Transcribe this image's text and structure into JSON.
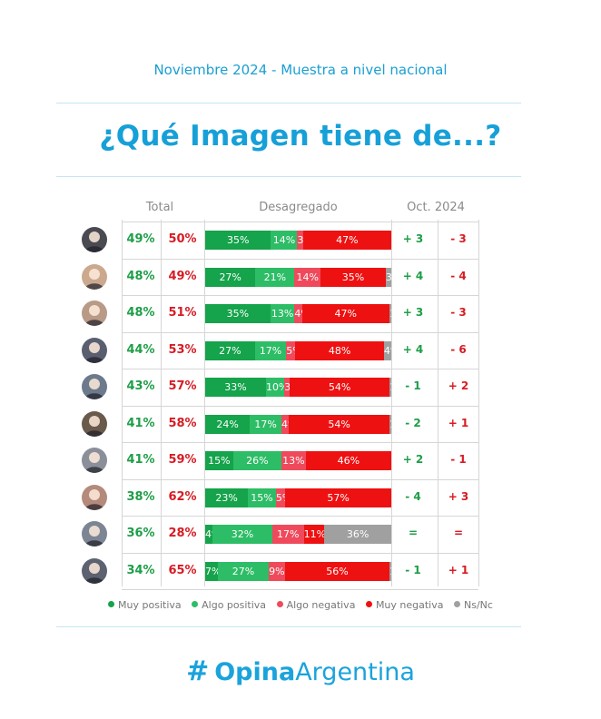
{
  "subtitle": "Noviembre 2024 - Muestra a nivel nacional",
  "title": "¿Qué Imagen tiene de...?",
  "headers": {
    "total": "Total",
    "desagregado": "Desagregado",
    "oct": "Oct. 2024"
  },
  "colors": {
    "muy_positiva": "#15a34b",
    "algo_positiva": "#2dbd66",
    "algo_negativa": "#ef4a5b",
    "muy_negativa": "#ee1111",
    "ns_nc": "#a0a0a0"
  },
  "chart_data": {
    "type": "bar",
    "stacked": true,
    "orientation": "horizontal",
    "series_names": [
      "Muy positiva",
      "Algo positiva",
      "Algo negativa",
      "Muy negativa",
      "Ns/Nc"
    ],
    "rows": [
      {
        "total_pos": "49%",
        "total_neg": "50%",
        "values": [
          35,
          14,
          3,
          47,
          0
        ],
        "labels": [
          "35%",
          "14%",
          "3%",
          "47%",
          "0%"
        ],
        "oct_pos": "+ 3",
        "oct_neg": "- 3"
      },
      {
        "total_pos": "48%",
        "total_neg": "49%",
        "values": [
          27,
          21,
          14,
          35,
          3
        ],
        "labels": [
          "27%",
          "21%",
          "14%",
          "35%",
          "3%"
        ],
        "oct_pos": "+ 4",
        "oct_neg": "- 4"
      },
      {
        "total_pos": "48%",
        "total_neg": "51%",
        "values": [
          35,
          13,
          4,
          47,
          1
        ],
        "labels": [
          "35%",
          "13%",
          "4%",
          "47%",
          "1%"
        ],
        "oct_pos": "+ 3",
        "oct_neg": "- 3"
      },
      {
        "total_pos": "44%",
        "total_neg": "53%",
        "values": [
          27,
          17,
          5,
          48,
          4
        ],
        "labels": [
          "27%",
          "17%",
          "5%",
          "48%",
          "4%"
        ],
        "oct_pos": "+ 4",
        "oct_neg": "- 6"
      },
      {
        "total_pos": "43%",
        "total_neg": "57%",
        "values": [
          33,
          10,
          3,
          54,
          1
        ],
        "labels": [
          "33%",
          "10%",
          "3%",
          "54%",
          "1%"
        ],
        "oct_pos": "- 1",
        "oct_neg": "+ 2"
      },
      {
        "total_pos": "41%",
        "total_neg": "58%",
        "values": [
          24,
          17,
          4,
          54,
          1
        ],
        "labels": [
          "24%",
          "17%",
          "4%",
          "54%",
          "1%"
        ],
        "oct_pos": "- 2",
        "oct_neg": "+ 1"
      },
      {
        "total_pos": "41%",
        "total_neg": "59%",
        "values": [
          15,
          26,
          13,
          46,
          0
        ],
        "labels": [
          "15%",
          "26%",
          "13%",
          "46%",
          "0%"
        ],
        "oct_pos": "+ 2",
        "oct_neg": "- 1"
      },
      {
        "total_pos": "38%",
        "total_neg": "62%",
        "values": [
          23,
          15,
          5,
          57,
          0
        ],
        "labels": [
          "23%",
          "15%",
          "5%",
          "57%",
          "0%"
        ],
        "oct_pos": "- 4",
        "oct_neg": "+ 3"
      },
      {
        "total_pos": "36%",
        "total_neg": "28%",
        "values": [
          4,
          32,
          17,
          11,
          36
        ],
        "labels": [
          "4%",
          "32%",
          "17%",
          "11%",
          "36%"
        ],
        "oct_pos": "=",
        "oct_neg": "="
      },
      {
        "total_pos": "34%",
        "total_neg": "65%",
        "values": [
          7,
          27,
          9,
          56,
          1
        ],
        "labels": [
          "7%",
          "27%",
          "9%",
          "56%",
          "1%"
        ],
        "oct_pos": "- 1",
        "oct_neg": "+ 1"
      }
    ]
  },
  "legend": [
    "Muy positiva",
    "Algo positiva",
    "Algo negativa",
    "Muy negativa",
    "Ns/Nc"
  ],
  "brand": {
    "part1": "Opina",
    "part2": "Argentina"
  }
}
